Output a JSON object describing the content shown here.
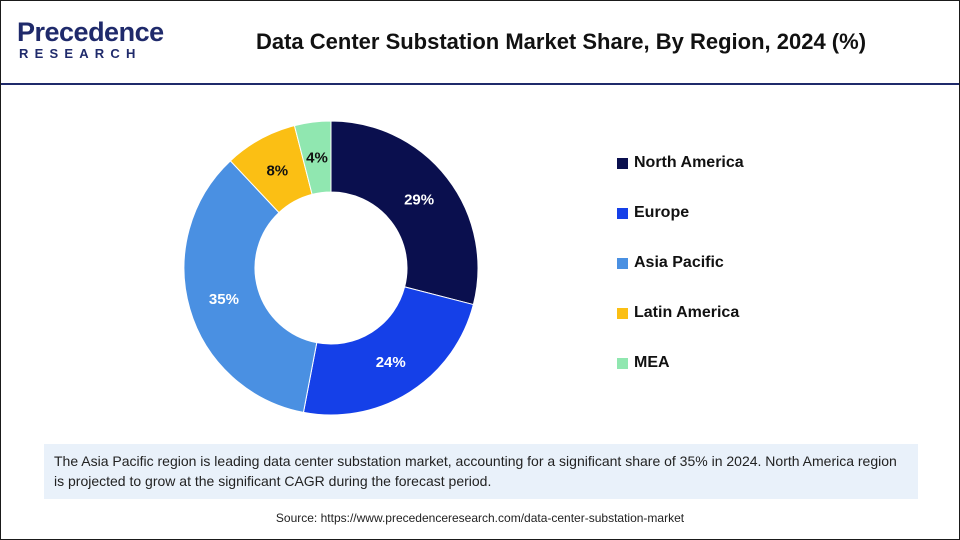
{
  "brand": {
    "name": "Precedence",
    "sub": "RESEARCH",
    "color": "#1f2a6b"
  },
  "title": "Data Center Substation Market Share, By Region, 2024 (%)",
  "chart_data": {
    "type": "pie",
    "donut": true,
    "title": "Data Center Substation Market Share, By Region, 2024 (%)",
    "categories": [
      "North America",
      "Europe",
      "Asia Pacific",
      "Latin America",
      "MEA"
    ],
    "values": [
      29,
      24,
      35,
      8,
      4
    ],
    "labels": [
      "29%",
      "24%",
      "35%",
      "8%",
      "4%"
    ],
    "colors": [
      "#0a0f4e",
      "#1540e8",
      "#4a90e2",
      "#fbbf14",
      "#90e7b0"
    ],
    "label_colors": [
      "#ffffff",
      "#ffffff",
      "#ffffff",
      "#111111",
      "#111111"
    ],
    "legend_position": "right"
  },
  "note": "The Asia Pacific region is leading data center substation market, accounting for a significant share of 35% in 2024. North America region is projected to grow at the significant CAGR during the forecast period.",
  "source": "Source: https://www.precedenceresearch.com/data-center-substation-market"
}
